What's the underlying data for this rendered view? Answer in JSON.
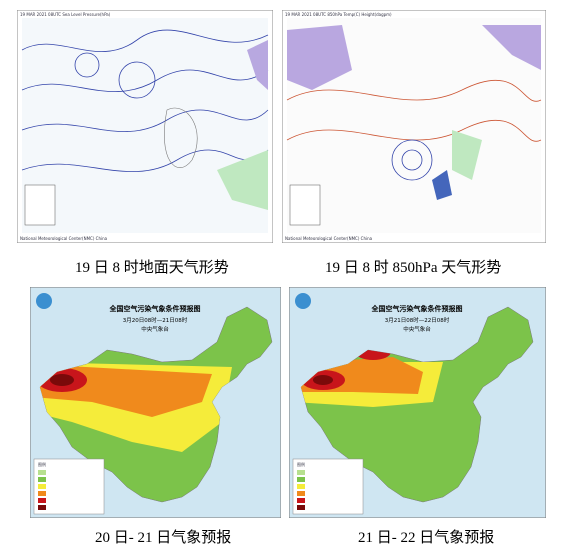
{
  "panels": [
    {
      "caption": "19 日 8 时地面天气形势",
      "header": "19 MAR 2021 08UTC Sea Level Pressure(hPa)",
      "footer": "National Meteorological Center(NMC) China"
    },
    {
      "caption": "19 日 8 时 850hPa 天气形势",
      "header": "19 MAR 2021 08UTC 850hPa Temp(C) Height(dagpm)",
      "footer": "National Meteorological Center(NMC) China"
    },
    {
      "caption": "20 日- 21 日气象预报",
      "title": "全国空气污染气象条件预报图",
      "period": "3月20日08时—21日08时",
      "issuer": "中央气象台",
      "legend_title": "图例"
    },
    {
      "caption": "21 日- 22 日气象预报",
      "title": "全国空气污染气象条件预报图",
      "period": "3月21日08时—22日08时",
      "issuer": "中央气象台",
      "legend_title": "图例"
    }
  ]
}
